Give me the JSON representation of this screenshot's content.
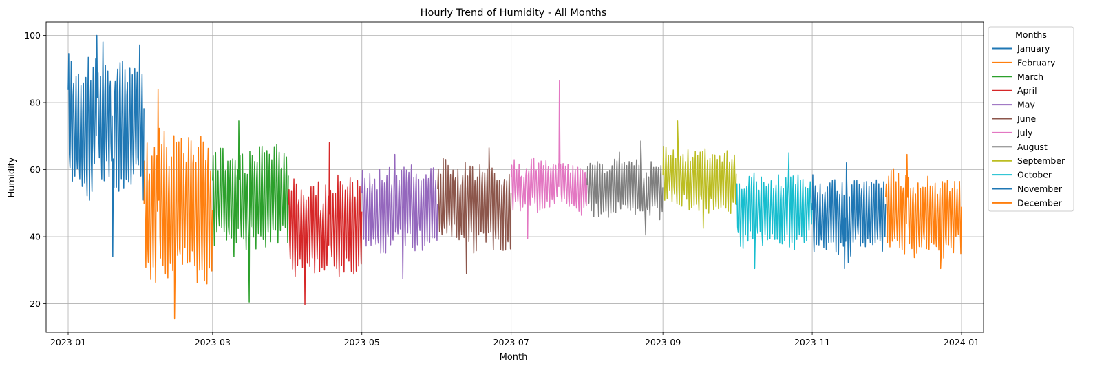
{
  "chart_data": {
    "type": "line",
    "title": "Hourly Trend of Humidity - All Months",
    "xlabel": "Month",
    "ylabel": "Humidity",
    "x_axis_type": "date",
    "xlim": [
      "2022-12-23",
      "2024-01-10"
    ],
    "ylim": [
      11.5,
      104
    ],
    "x_ticks": [
      "2023-01",
      "2023-03",
      "2023-05",
      "2023-07",
      "2023-09",
      "2023-11",
      "2024-01"
    ],
    "y_ticks": [
      20,
      40,
      60,
      80,
      100
    ],
    "grid": true,
    "legend": {
      "title": "Months",
      "placement": "outside-top-right"
    },
    "series": [
      {
        "name": "January",
        "color": "#1f77b4",
        "x_range": [
          "2023-01-01",
          "2023-01-31"
        ],
        "summary": {
          "min": 34,
          "max": 100,
          "typical_low": 50,
          "typical_high": 95
        }
      },
      {
        "name": "February",
        "color": "#ff7f0e",
        "x_range": [
          "2023-02-01",
          "2023-02-28"
        ],
        "summary": {
          "min": 15.5,
          "max": 84,
          "typical_low": 25,
          "typical_high": 72
        }
      },
      {
        "name": "March",
        "color": "#2ca02c",
        "x_range": [
          "2023-03-01",
          "2023-03-31"
        ],
        "summary": {
          "min": 20.5,
          "max": 74.5,
          "typical_low": 35,
          "typical_high": 68
        }
      },
      {
        "name": "April",
        "color": "#d62728",
        "x_range": [
          "2023-04-01",
          "2023-04-30"
        ],
        "summary": {
          "min": 19.8,
          "max": 68,
          "typical_low": 28,
          "typical_high": 58
        }
      },
      {
        "name": "May",
        "color": "#9467bd",
        "x_range": [
          "2023-05-01",
          "2023-05-31"
        ],
        "summary": {
          "min": 27.5,
          "max": 64.5,
          "typical_low": 35,
          "typical_high": 62
        }
      },
      {
        "name": "June",
        "color": "#8c564b",
        "x_range": [
          "2023-06-01",
          "2023-06-30"
        ],
        "summary": {
          "min": 29,
          "max": 66.5,
          "typical_low": 35,
          "typical_high": 63
        }
      },
      {
        "name": "July",
        "color": "#e377c2",
        "x_range": [
          "2023-07-01",
          "2023-07-31"
        ],
        "summary": {
          "min": 39.5,
          "max": 86.5,
          "typical_low": 47,
          "typical_high": 63
        }
      },
      {
        "name": "August",
        "color": "#7f7f7f",
        "x_range": [
          "2023-08-01",
          "2023-08-31"
        ],
        "summary": {
          "min": 40.5,
          "max": 68.5,
          "typical_low": 45,
          "typical_high": 63
        }
      },
      {
        "name": "September",
        "color": "#bcbd22",
        "x_range": [
          "2023-09-01",
          "2023-09-30"
        ],
        "summary": {
          "min": 42.5,
          "max": 74.5,
          "typical_low": 48,
          "typical_high": 67
        }
      },
      {
        "name": "October",
        "color": "#17becf",
        "x_range": [
          "2023-10-01",
          "2023-10-31"
        ],
        "summary": {
          "min": 30.5,
          "max": 65,
          "typical_low": 36,
          "typical_high": 59
        }
      },
      {
        "name": "November",
        "color": "#1f77b4",
        "x_range": [
          "2023-11-01",
          "2023-11-30"
        ],
        "summary": {
          "min": 30.5,
          "max": 62,
          "typical_low": 35,
          "typical_high": 59
        }
      },
      {
        "name": "December",
        "color": "#ff7f0e",
        "x_range": [
          "2023-12-01",
          "2023-12-31"
        ],
        "summary": {
          "min": 30.5,
          "max": 64.5,
          "typical_low": 34,
          "typical_high": 60
        }
      }
    ]
  }
}
